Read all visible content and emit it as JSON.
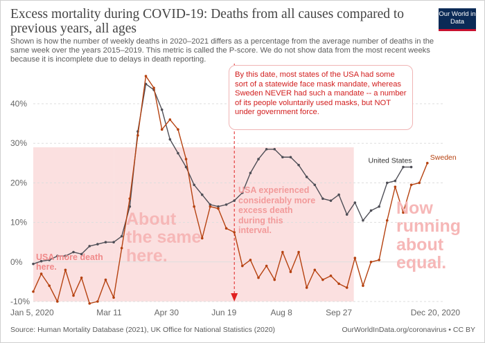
{
  "header": {
    "title": "Excess mortality during COVID-19: Deaths from all causes compared to previous years, all ages",
    "subtitle": "Shown is how the number of weekly deaths in 2020–2021 differs as a percentage from the average number of deaths in the same week over the years 2015–2019. This metric is called the P-score. We do not show data from the most recent weeks because it is incomplete due to delays in death reporting.",
    "logo": "Our World in Data"
  },
  "footer": {
    "source": "Source: Human Mortality Database (2021), UK Office for National Statistics (2020)",
    "credit": "OurWorldInData.org/coronavirus • CC BY"
  },
  "annotations": {
    "callout": "By this date, most states of the USA had some sort of a statewide face mask mandate, whereas Sweden NEVER had such a mandate -- a number of its people voluntarily used masks, but NOT under government force.",
    "usa_more_early": "USA more death here.",
    "about_same": "About the same here.",
    "usa_more_mid": "USA experienced considerably more excess death during this interval.",
    "now_equal": "Now running about equal."
  },
  "colors": {
    "united_states": "#4e4e56",
    "sweden": "#b5410f",
    "grid": "#dddddd",
    "highlight": "#f9d6d6",
    "marker": "#e02020"
  },
  "chart_data": {
    "type": "line",
    "y_unit": "%",
    "ylim": [
      -10,
      47
    ],
    "yticks": [
      "-10%",
      "0%",
      "10%",
      "20%",
      "30%",
      "40%"
    ],
    "yticks_values": [
      -10,
      0,
      10,
      20,
      30,
      40
    ],
    "x_range": [
      "2020-01-05",
      "2020-12-27"
    ],
    "xticks": [
      "Jan 5, 2020",
      "Mar 11",
      "Apr 30",
      "Jun 19",
      "Aug 8",
      "Sep 27",
      "Dec 20, 2020"
    ],
    "xticks_values": [
      "2020-01-05",
      "2020-03-11",
      "2020-04-30",
      "2020-06-19",
      "2020-08-08",
      "2020-09-27",
      "2020-12-20"
    ],
    "grid": true,
    "marker_date": "2020-06-28",
    "highlighted_intervals": [
      [
        "2020-01-05",
        "2020-03-15"
      ],
      [
        "2020-03-15",
        "2020-06-28"
      ],
      [
        "2020-06-28",
        "2020-10-10"
      ]
    ],
    "series": [
      {
        "name": "United States",
        "start": "2020-01-05",
        "step_days": 7,
        "values": [
          -0.5,
          0.2,
          0.5,
          1.5,
          1.5,
          2.5,
          2.0,
          4.0,
          4.5,
          5.0,
          5.0,
          6.5,
          14.0,
          33.0,
          45.0,
          43.5,
          38.5,
          31.0,
          27.5,
          24.0,
          19.5,
          17.0,
          14.5,
          14.0,
          14.5,
          15.5,
          17.5,
          22.5,
          26.0,
          28.5,
          28.5,
          26.5,
          26.5,
          24.5,
          21.5,
          19.5,
          16.0,
          15.5,
          17.0,
          12.0,
          15.0,
          10.5,
          13.0,
          14.0,
          20.0,
          20.5,
          24.0,
          24.0
        ]
      },
      {
        "name": "Sweden",
        "start": "2020-01-05",
        "step_days": 7,
        "values": [
          -7.5,
          -3.0,
          -6.0,
          -10.0,
          -2.0,
          -8.5,
          -4.0,
          -10.5,
          -10.0,
          -4.5,
          -9.0,
          3.5,
          16.0,
          32.0,
          47.0,
          44.0,
          33.5,
          36.0,
          33.5,
          26.0,
          14.0,
          6.0,
          14.0,
          13.5,
          8.5,
          7.5,
          -1.0,
          0.5,
          -4.0,
          -1.0,
          -4.5,
          2.5,
          -2.5,
          2.5,
          -6.5,
          -2.0,
          -4.5,
          -3.5,
          -5.5,
          -6.5,
          1.0,
          -6.0,
          0.0,
          0.5,
          10.5,
          19.0,
          12.5,
          19.5,
          20.0,
          25.0
        ]
      }
    ]
  }
}
